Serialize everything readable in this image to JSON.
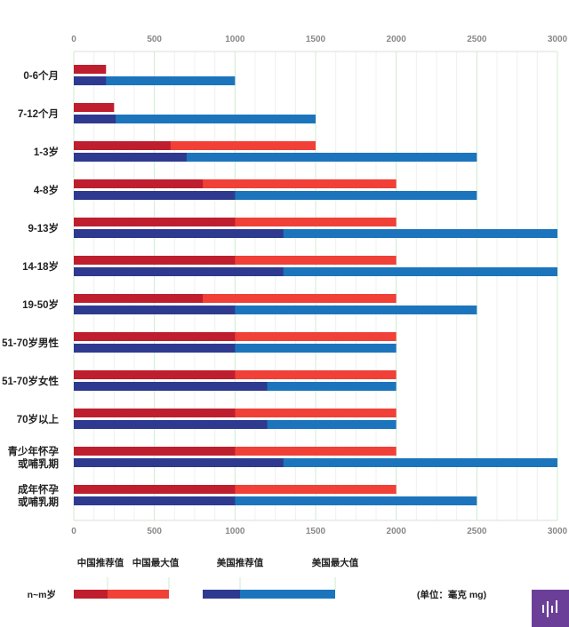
{
  "chart_data": {
    "type": "bar",
    "orientation": "horizontal",
    "xlim": [
      0,
      3000
    ],
    "x_ticks": [
      "0",
      "500",
      "1000",
      "1500",
      "2000",
      "2500",
      "3000"
    ],
    "grid": true,
    "categories": [
      [
        "0-6个月"
      ],
      [
        "7-12个月"
      ],
      [
        "1-3岁"
      ],
      [
        "4-8岁"
      ],
      [
        "9-13岁"
      ],
      [
        "14-18岁"
      ],
      [
        "19-50岁"
      ],
      [
        "51-70岁男性"
      ],
      [
        "51-70岁女性"
      ],
      [
        "70岁以上"
      ],
      [
        "青少年怀孕",
        "或哺乳期"
      ],
      [
        "成年怀孕",
        "或哺乳期"
      ]
    ],
    "series": [
      {
        "name": "中国推荐值",
        "color": "#be1e2d",
        "values": [
          200,
          250,
          600,
          800,
          1000,
          1000,
          800,
          1000,
          1000,
          1000,
          1000,
          1000
        ]
      },
      {
        "name": "中国最大值",
        "color": "#f04037",
        "values": [
          null,
          null,
          1500,
          2000,
          2000,
          2000,
          2000,
          2000,
          2000,
          2000,
          2000,
          2000
        ]
      },
      {
        "name": "美国推荐值",
        "color": "#2e3a8f",
        "values": [
          200,
          260,
          700,
          1000,
          1300,
          1300,
          1000,
          1000,
          1200,
          1200,
          1300,
          1000
        ]
      },
      {
        "name": "美国最大值",
        "color": "#1c75bc",
        "values": [
          1000,
          1500,
          2500,
          2500,
          3000,
          3000,
          2500,
          2000,
          2000,
          2000,
          3000,
          2500
        ]
      }
    ],
    "legend": {
      "position": "bottom",
      "sample_label": "n~m岁",
      "unit_note": "(单位：毫克 mg)"
    }
  },
  "logo": {
    "color": "#6b3f98"
  }
}
